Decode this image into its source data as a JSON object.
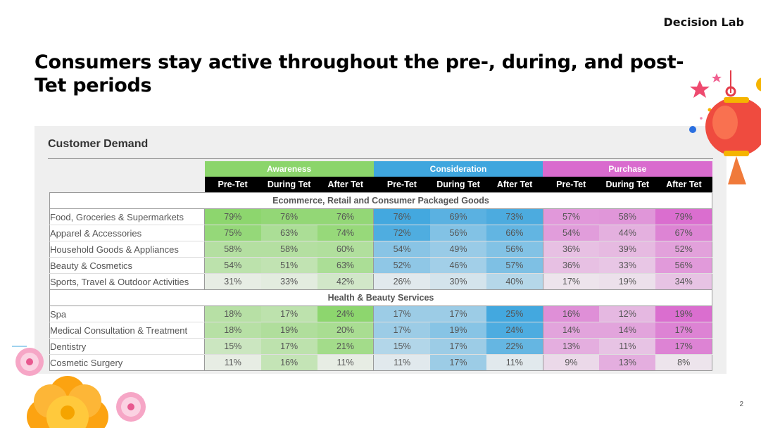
{
  "header": {
    "brand": "Decision Lab"
  },
  "slide": {
    "title": "Consumers stay active throughout the pre-, during, and post-Tet periods",
    "page_number": "2"
  },
  "panel": {
    "heading": "Customer Demand"
  },
  "table": {
    "groups": [
      {
        "label": "Awareness",
        "color": "#8bd56b"
      },
      {
        "label": "Consideration",
        "color": "#3fa6de"
      },
      {
        "label": "Purchase",
        "color": "#d96bce"
      }
    ],
    "subheaders": [
      "Pre-Tet",
      "During Tet",
      "After Tet",
      "Pre-Tet",
      "During Tet",
      "After Tet",
      "Pre-Tet",
      "During Tet",
      "After Tet"
    ],
    "sections": [
      {
        "title": "Ecommerce, Retail and Consumer Packaged Goods",
        "rows": [
          {
            "label": "Food, Groceries & Supermarkets",
            "values": [
              "79%",
              "76%",
              "76%",
              "76%",
              "69%",
              "73%",
              "57%",
              "58%",
              "79%"
            ]
          },
          {
            "label": "Apparel & Accessories",
            "values": [
              "75%",
              "63%",
              "74%",
              "72%",
              "56%",
              "66%",
              "54%",
              "44%",
              "67%"
            ]
          },
          {
            "label": "Household Goods & Appliances",
            "values": [
              "58%",
              "58%",
              "60%",
              "54%",
              "49%",
              "56%",
              "36%",
              "39%",
              "52%"
            ]
          },
          {
            "label": "Beauty & Cosmetics",
            "values": [
              "54%",
              "51%",
              "63%",
              "52%",
              "46%",
              "57%",
              "36%",
              "33%",
              "56%"
            ]
          },
          {
            "label": "Sports, Travel & Outdoor Activities",
            "values": [
              "31%",
              "33%",
              "42%",
              "26%",
              "30%",
              "40%",
              "17%",
              "19%",
              "34%"
            ]
          }
        ]
      },
      {
        "title": "Health & Beauty Services",
        "rows": [
          {
            "label": "Spa",
            "values": [
              "18%",
              "17%",
              "24%",
              "17%",
              "17%",
              "25%",
              "16%",
              "12%",
              "19%"
            ]
          },
          {
            "label": "Medical Consultation & Treatment",
            "values": [
              "18%",
              "19%",
              "20%",
              "17%",
              "19%",
              "24%",
              "14%",
              "14%",
              "17%"
            ]
          },
          {
            "label": "Dentistry",
            "values": [
              "15%",
              "17%",
              "21%",
              "15%",
              "17%",
              "22%",
              "13%",
              "11%",
              "17%"
            ]
          },
          {
            "label": "Cosmetic Surgery",
            "values": [
              "11%",
              "16%",
              "11%",
              "11%",
              "17%",
              "11%",
              "9%",
              "13%",
              "8%"
            ]
          }
        ]
      }
    ]
  }
}
